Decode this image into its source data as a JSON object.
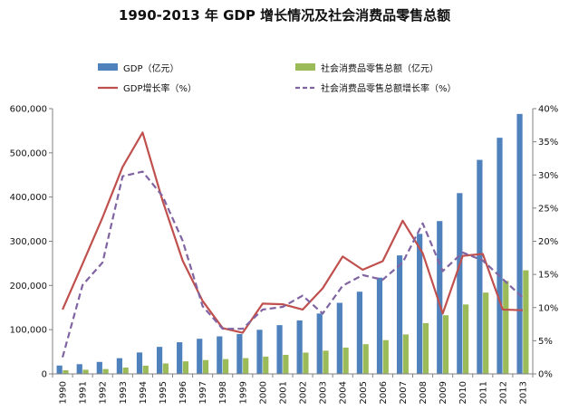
{
  "chart_data": {
    "type": "bar",
    "title": "1990-2013 年 GDP 增长情况及社会消费品零售总额",
    "categories": [
      "1990",
      "1991",
      "1992",
      "1993",
      "1994",
      "1995",
      "1996",
      "1997",
      "1998",
      "1999",
      "2000",
      "2001",
      "2002",
      "2003",
      "2004",
      "2005",
      "2006",
      "2007",
      "2008",
      "2009",
      "2010",
      "2011",
      "2012",
      "2013"
    ],
    "series": [
      {
        "name": "GDP（亿元）",
        "kind": "bar",
        "axis": "left",
        "color": "#4f81bd",
        "values": [
          18873,
          22006,
          27068,
          35524,
          48460,
          61130,
          71572,
          79430,
          84883,
          90188,
          99776,
          110270,
          121002,
          136565,
          160714,
          185896,
          217657,
          268019,
          316752,
          345629,
          408903,
          484124,
          534123,
          588019
        ]
      },
      {
        "name": "社会消费品零售总额（亿元）",
        "kind": "bar",
        "axis": "left",
        "color": "#9bbb59",
        "values": [
          8300,
          9416,
          10994,
          14270,
          18623,
          23614,
          28360,
          31253,
          33378,
          35648,
          39106,
          43055,
          48136,
          52516,
          59501,
          67177,
          76410,
          89210,
          114830,
          132678,
          156998,
          183919,
          210307,
          234380
        ]
      },
      {
        "name": "GDP增长率（%）",
        "kind": "line",
        "axis": "right",
        "color": "#c0504d",
        "dash": "solid",
        "values": [
          9.7,
          16.6,
          23.6,
          31.2,
          36.4,
          26.1,
          17.1,
          11.0,
          6.9,
          6.2,
          10.6,
          10.5,
          9.7,
          12.9,
          17.7,
          15.7,
          17.0,
          23.1,
          18.2,
          9.1,
          17.8,
          18.1,
          9.7,
          9.6
        ]
      },
      {
        "name": "社会消费品零售总额增长率（%）",
        "kind": "line",
        "axis": "right",
        "color": "#8064a2",
        "dash": "dashed",
        "values": [
          2.5,
          13.4,
          16.8,
          29.8,
          30.5,
          26.8,
          20.1,
          10.2,
          6.8,
          6.8,
          9.7,
          10.1,
          11.8,
          9.1,
          13.3,
          14.9,
          14.2,
          16.8,
          22.7,
          15.5,
          18.3,
          17.1,
          14.3,
          11.5
        ]
      }
    ],
    "yleft": {
      "ylim": [
        0,
        600000
      ],
      "ticks": [
        "0",
        "100,000",
        "200,000",
        "300,000",
        "400,000",
        "500,000",
        "600,000"
      ]
    },
    "yright": {
      "ylim": [
        0,
        40
      ],
      "ticks": [
        "0%",
        "5%",
        "10%",
        "15%",
        "20%",
        "25%",
        "30%",
        "35%",
        "40%"
      ]
    },
    "grid": false,
    "legend_position": "top"
  }
}
